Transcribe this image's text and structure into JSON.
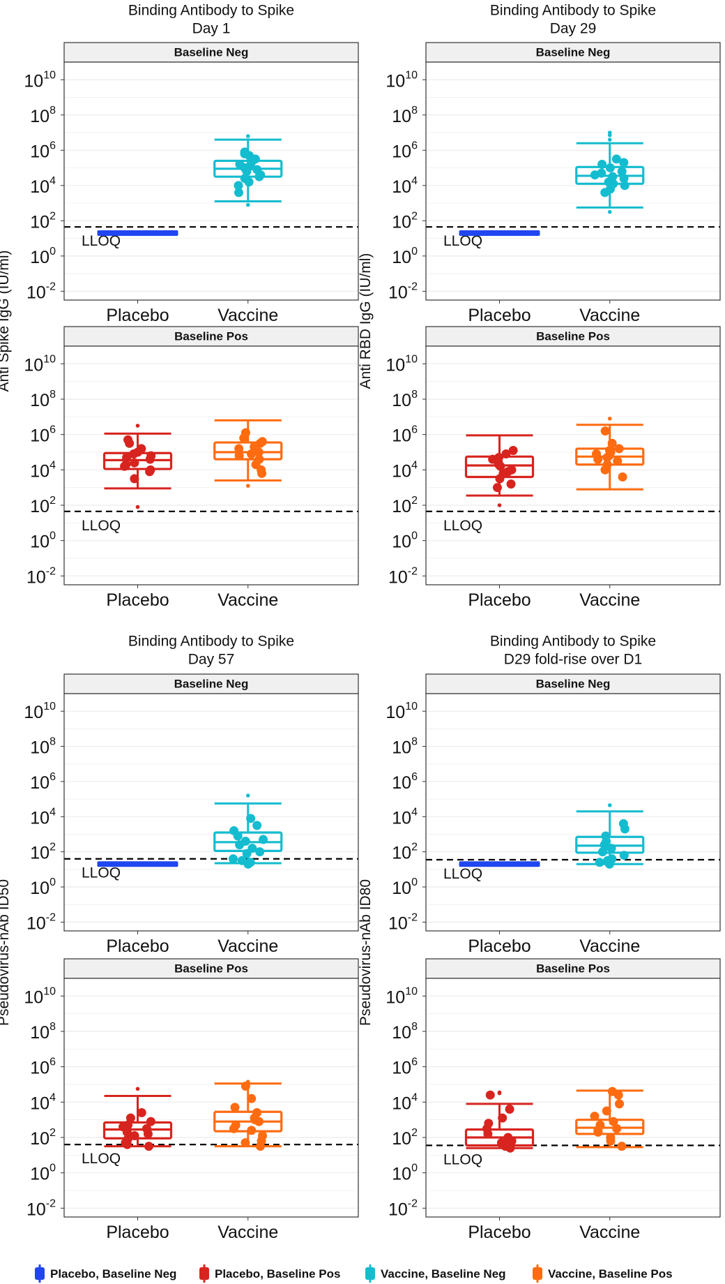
{
  "colors": {
    "placebo_neg": "#1f46f0",
    "placebo_pos": "#d7241f",
    "vaccine_neg": "#14bccf",
    "vaccine_pos": "#fe6b10",
    "strip_bg": "#f0f0f0",
    "grid": "#ebebeb"
  },
  "legend": [
    {
      "label": "Placebo, Baseline Neg",
      "color": "#1f46f0"
    },
    {
      "label": "Placebo, Baseline Pos",
      "color": "#d7241f"
    },
    {
      "label": "Vaccine, Baseline Neg",
      "color": "#14bccf"
    },
    {
      "label": "Vaccine, Baseline Pos",
      "color": "#fe6b10"
    }
  ],
  "chart_data": [
    {
      "type": "box",
      "title": [
        "Binding Antibody to Spike",
        "Day 1"
      ],
      "ylabel": "Anti Spike IgG (IU/ml)",
      "yscale": "log10",
      "ylim_log10": [
        -2.5,
        11
      ],
      "yticks": [
        -2,
        0,
        2,
        4,
        6,
        8,
        10
      ],
      "categories": [
        "Placebo",
        "Vaccine"
      ],
      "lloq_log10": 1.65,
      "lloq_label": "LLOQ",
      "panels": [
        {
          "strip": "Baseline Neg",
          "boxes": [
            {
              "group": "Placebo",
              "color": "placebo_neg",
              "whisker_low": 1.3,
              "q1": 1.3,
              "median": 1.3,
              "q3": 1.3,
              "whisker_high": 1.3,
              "outliers": [],
              "points": [
                1.3,
                1.3,
                1.3,
                1.3,
                1.3,
                1.3,
                1.3,
                1.3,
                1.3,
                1.3,
                1.3,
                1.3
              ]
            },
            {
              "group": "Vaccine",
              "color": "vaccine_neg",
              "whisker_low": 3.1,
              "q1": 4.5,
              "median": 4.95,
              "q3": 5.4,
              "whisker_high": 6.6,
              "outliers": [
                2.9,
                6.8
              ],
              "points": [
                4.2,
                4.4,
                4.6,
                4.8,
                5.0,
                5.1,
                5.3,
                5.5,
                5.8,
                5.9,
                4.5,
                4.9,
                5.2,
                4.0,
                3.6,
                5.7
              ]
            }
          ]
        },
        {
          "strip": "Baseline Pos",
          "boxes": [
            {
              "group": "Placebo",
              "color": "placebo_pos",
              "whisker_low": 2.95,
              "q1": 4.05,
              "median": 4.55,
              "q3": 4.95,
              "whisker_high": 6.05,
              "outliers": [
                1.9,
                6.5
              ],
              "points": [
                3.9,
                4.0,
                4.2,
                4.4,
                4.6,
                4.7,
                4.9,
                5.0,
                5.2,
                5.5,
                4.3,
                4.8,
                3.5,
                5.7
              ]
            },
            {
              "group": "Vaccine",
              "color": "vaccine_pos",
              "whisker_low": 3.4,
              "q1": 4.6,
              "median": 5.0,
              "q3": 5.55,
              "whisker_high": 6.8,
              "outliers": [
                3.1
              ],
              "points": [
                4.0,
                4.3,
                4.6,
                4.9,
                5.0,
                5.2,
                5.5,
                5.8,
                6.1,
                4.8,
                5.3,
                3.8,
                5.6
              ]
            }
          ]
        }
      ]
    },
    {
      "type": "box",
      "title": [
        "Binding Antibody to Spike",
        "Day 29"
      ],
      "ylabel": "Anti RBD IgG (IU/ml)",
      "yscale": "log10",
      "ylim_log10": [
        -2.5,
        11
      ],
      "yticks": [
        -2,
        0,
        2,
        4,
        6,
        8,
        10
      ],
      "categories": [
        "Placebo",
        "Vaccine"
      ],
      "lloq_log10": 1.65,
      "lloq_label": "LLOQ",
      "panels": [
        {
          "strip": "Baseline Neg",
          "boxes": [
            {
              "group": "Placebo",
              "color": "placebo_neg",
              "whisker_low": 1.3,
              "q1": 1.3,
              "median": 1.3,
              "q3": 1.3,
              "whisker_high": 1.3,
              "outliers": [],
              "points": [
                1.3,
                1.3,
                1.3,
                1.3,
                1.3,
                1.3,
                1.3,
                1.3,
                1.3,
                1.3,
                1.3,
                1.3
              ]
            },
            {
              "group": "Vaccine",
              "color": "vaccine_neg",
              "whisker_low": 2.75,
              "q1": 4.1,
              "median": 4.55,
              "q3": 5.05,
              "whisker_high": 6.4,
              "outliers": [
                2.5,
                6.6,
                6.85,
                7.0
              ],
              "points": [
                3.8,
                4.0,
                4.2,
                4.4,
                4.6,
                4.8,
                5.0,
                5.3,
                5.5,
                4.5,
                4.7,
                3.6,
                4.1,
                5.2
              ]
            }
          ]
        },
        {
          "strip": "Baseline Pos",
          "boxes": [
            {
              "group": "Placebo",
              "color": "placebo_pos",
              "whisker_low": 2.55,
              "q1": 3.6,
              "median": 4.25,
              "q3": 4.75,
              "whisker_high": 5.95,
              "outliers": [
                2.0
              ],
              "points": [
                3.2,
                3.5,
                3.8,
                4.0,
                4.2,
                4.4,
                4.6,
                4.9,
                5.1,
                3.0,
                4.3,
                4.7,
                3.9
              ]
            },
            {
              "group": "Vaccine",
              "color": "vaccine_pos",
              "whisker_low": 2.9,
              "q1": 4.3,
              "median": 4.75,
              "q3": 5.2,
              "whisker_high": 6.55,
              "outliers": [
                6.9
              ],
              "points": [
                3.6,
                4.0,
                4.3,
                4.6,
                4.8,
                5.0,
                5.2,
                5.5,
                4.5,
                4.7,
                4.9,
                5.1,
                6.2
              ]
            }
          ]
        }
      ]
    },
    {
      "type": "box",
      "title": [
        "Binding Antibody to Spike",
        "Day 57"
      ],
      "ylabel": "Pseudovirus-nAb ID50",
      "yscale": "log10",
      "ylim_log10": [
        -2.5,
        11
      ],
      "yticks": [
        -2,
        0,
        2,
        4,
        6,
        8,
        10
      ],
      "categories": [
        "Placebo",
        "Vaccine"
      ],
      "lloq_log10": 1.6,
      "lloq_label": "LLOQ",
      "panels": [
        {
          "strip": "Baseline Neg",
          "boxes": [
            {
              "group": "Placebo",
              "color": "placebo_neg",
              "whisker_low": 1.3,
              "q1": 1.3,
              "median": 1.3,
              "q3": 1.3,
              "whisker_high": 1.3,
              "outliers": [],
              "points": [
                1.3,
                1.3,
                1.3,
                1.3,
                1.3,
                1.3,
                1.3,
                1.3,
                1.3,
                1.3,
                1.3,
                1.3
              ]
            },
            {
              "group": "Vaccine",
              "color": "vaccine_neg",
              "whisker_low": 1.35,
              "q1": 2.05,
              "median": 2.55,
              "q3": 3.1,
              "whisker_high": 4.75,
              "outliers": [
                5.2
              ],
              "points": [
                1.3,
                1.4,
                1.6,
                1.9,
                2.2,
                2.4,
                2.6,
                2.9,
                3.2,
                3.5,
                3.9,
                2.0,
                2.7,
                1.5
              ]
            }
          ]
        },
        {
          "strip": "Baseline Pos",
          "boxes": [
            {
              "group": "Placebo",
              "color": "placebo_pos",
              "whisker_low": 1.5,
              "q1": 1.95,
              "median": 2.45,
              "q3": 2.85,
              "whisker_high": 4.35,
              "outliers": [
                4.75
              ],
              "points": [
                1.5,
                1.7,
                1.9,
                2.1,
                2.3,
                2.5,
                2.7,
                2.9,
                3.1,
                3.4,
                2.2,
                2.6,
                1.6
              ]
            },
            {
              "group": "Vaccine",
              "color": "vaccine_pos",
              "whisker_low": 1.5,
              "q1": 2.35,
              "median": 2.9,
              "q3": 3.45,
              "whisker_high": 5.05,
              "outliers": [
                5.15
              ],
              "points": [
                1.5,
                1.8,
                2.1,
                2.4,
                2.7,
                2.9,
                3.1,
                3.4,
                3.7,
                4.2,
                4.9,
                2.5,
                3.0,
                1.7
              ]
            }
          ]
        }
      ]
    },
    {
      "type": "box",
      "title": [
        "Binding Antibody to Spike",
        "D29 fold-rise over D1"
      ],
      "ylabel": "Pseudovirus-nAb ID80",
      "yscale": "log10",
      "ylim_log10": [
        -2.5,
        11
      ],
      "yticks": [
        -2,
        0,
        2,
        4,
        6,
        8,
        10
      ],
      "categories": [
        "Placebo",
        "Vaccine"
      ],
      "lloq_log10": 1.55,
      "lloq_label": "LLOQ",
      "panels": [
        {
          "strip": "Baseline Neg",
          "boxes": [
            {
              "group": "Placebo",
              "color": "placebo_neg",
              "whisker_low": 1.3,
              "q1": 1.3,
              "median": 1.3,
              "q3": 1.3,
              "whisker_high": 1.3,
              "outliers": [],
              "points": [
                1.3,
                1.3,
                1.3,
                1.3,
                1.3,
                1.3,
                1.3,
                1.3,
                1.3,
                1.3,
                1.3,
                1.3
              ]
            },
            {
              "group": "Vaccine",
              "color": "vaccine_neg",
              "whisker_low": 1.3,
              "q1": 1.95,
              "median": 2.35,
              "q3": 2.85,
              "whisker_high": 4.3,
              "outliers": [
                4.65
              ],
              "points": [
                1.3,
                1.4,
                1.6,
                1.8,
                2.0,
                2.2,
                2.4,
                2.6,
                2.9,
                3.3,
                3.6,
                1.5,
                2.3
              ]
            }
          ]
        },
        {
          "strip": "Baseline Pos",
          "boxes": [
            {
              "group": "Placebo",
              "color": "placebo_pos",
              "whisker_low": 1.4,
              "q1": 1.55,
              "median": 2.0,
              "q3": 2.45,
              "whisker_high": 3.9,
              "outliers": [
                4.5,
                4.55
              ],
              "points": [
                1.4,
                1.5,
                1.6,
                1.8,
                2.0,
                2.2,
                2.5,
                2.8,
                3.1,
                3.6,
                4.4,
                1.7
              ]
            },
            {
              "group": "Vaccine",
              "color": "vaccine_pos",
              "whisker_low": 1.45,
              "q1": 2.2,
              "median": 2.55,
              "q3": 3.0,
              "whisker_high": 4.65,
              "outliers": [],
              "points": [
                1.5,
                1.8,
                2.0,
                2.3,
                2.5,
                2.7,
                2.9,
                3.2,
                3.5,
                3.9,
                4.4,
                4.6,
                2.4
              ]
            }
          ]
        }
      ]
    }
  ]
}
